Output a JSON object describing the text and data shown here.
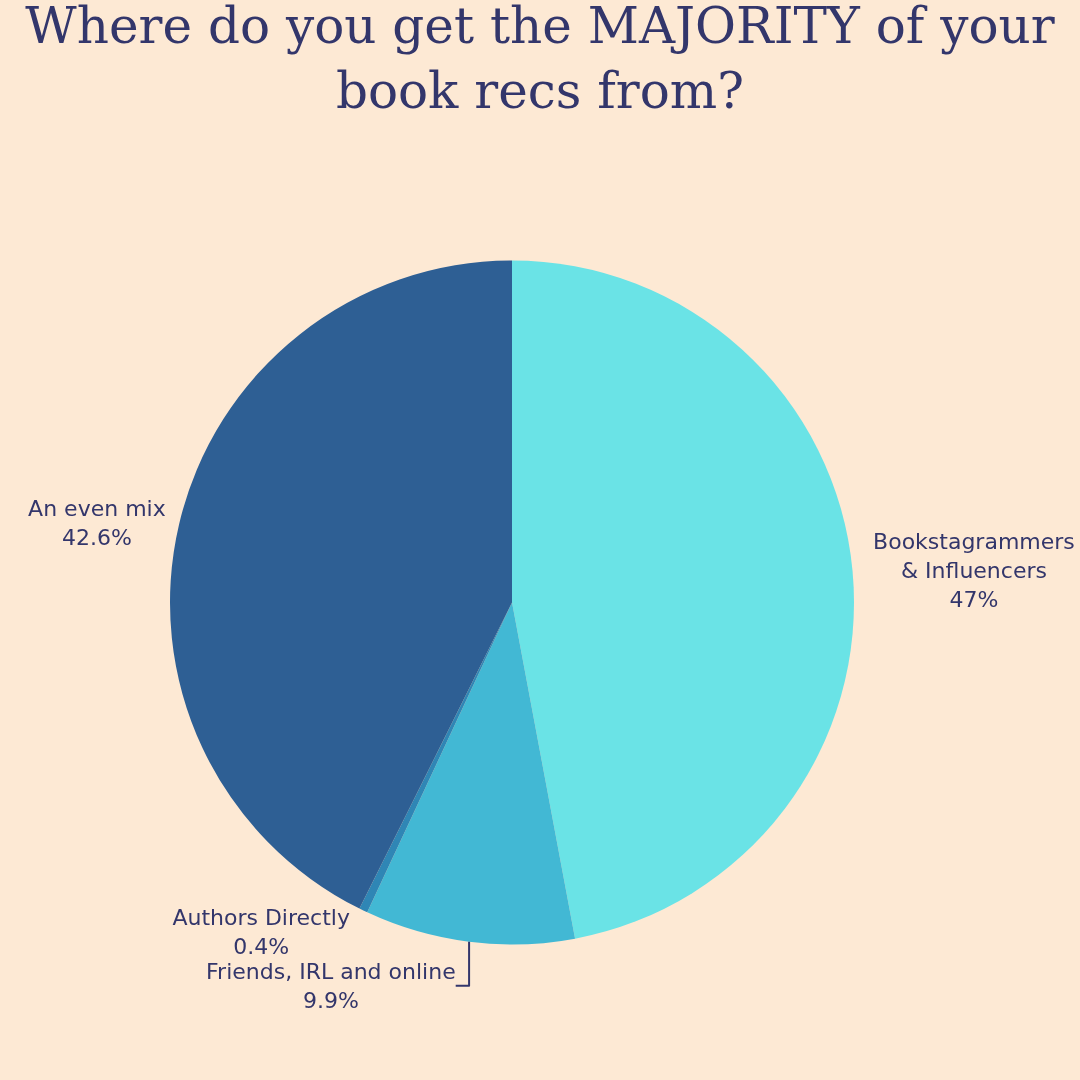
{
  "chart_data": {
    "type": "pie",
    "title": "Where do you get the MAJORITY of your book recs from?",
    "categories": [
      "Bookstagrammers & Influencers",
      "Friends, IRL and online",
      "Authors Directly",
      "An even mix"
    ],
    "values": [
      47,
      9.9,
      0.4,
      42.6
    ],
    "value_labels": [
      "47%",
      "9.9%",
      "0.4%",
      "42.6%"
    ],
    "colors": [
      "#6ae3e6",
      "#42b8d4",
      "#2f86b5",
      "#2e5f94"
    ],
    "legend": false
  }
}
